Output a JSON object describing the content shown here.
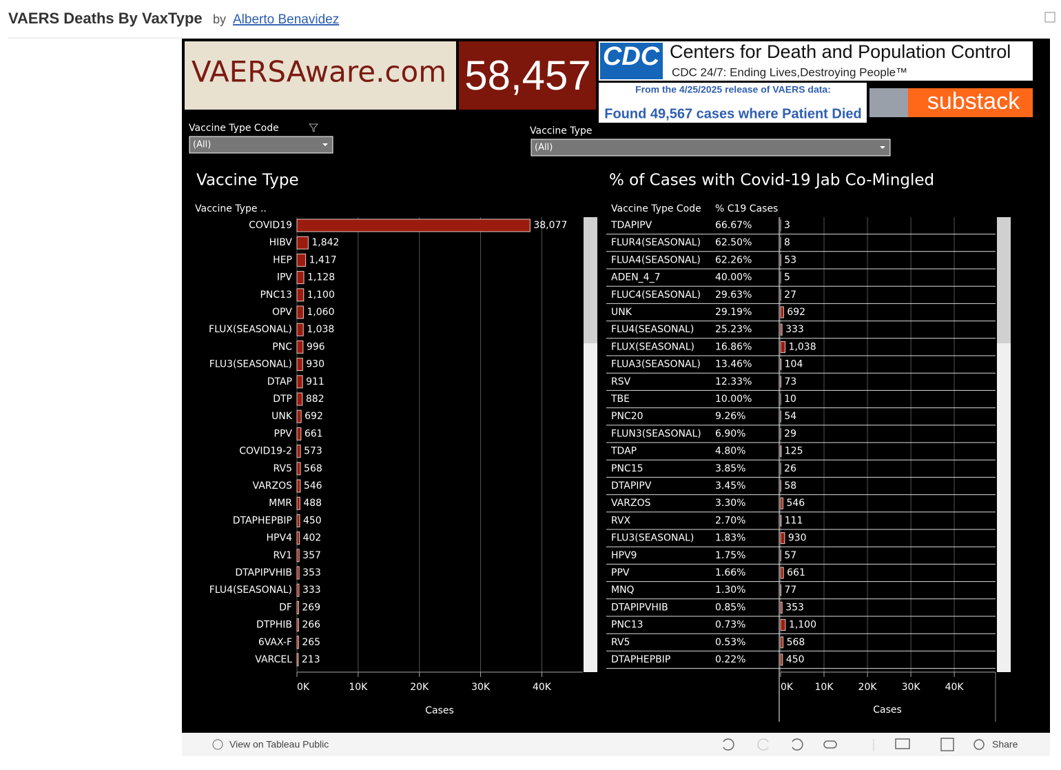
{
  "header": {
    "title": "VAERS Deaths By VaxType",
    "by": "by",
    "author": "Alberto Benavidez"
  },
  "banner": {
    "site": "VAERSAware.com",
    "count": "58,457",
    "cdc_logo": "CDC",
    "cdc_title": "Centers for Death and Population Control",
    "cdc_tagline": "CDC 24/7: Ending Lives,Destroying People™",
    "release_note": "From the 4/25/2025 release of VAERS data:",
    "found": "Found 49,567 cases where Patient Died",
    "substack": "substack"
  },
  "filters": [
    {
      "label": "Vaccine Type Code",
      "value": "(All)"
    },
    {
      "label": "Vaccine Type",
      "value": "(All)"
    }
  ],
  "chart_data": [
    {
      "type": "bar",
      "title": "Vaccine Type",
      "column_header": "Vaccine Type ..",
      "categories": [
        "COVID19",
        "HIBV",
        "HEP",
        "IPV",
        "PNC13",
        "OPV",
        "FLUX(SEASONAL)",
        "PNC",
        "FLU3(SEASONAL)",
        "DTAP",
        "DTP",
        "UNK",
        "PPV",
        "COVID19-2",
        "RV5",
        "VARZOS",
        "MMR",
        "DTAPHEPBIP",
        "HPV4",
        "RV1",
        "DTAPIPVHIB",
        "FLU4(SEASONAL)",
        "DF",
        "DTPHIB",
        "6VAX-F",
        "VARCEL"
      ],
      "values": [
        38077,
        1842,
        1417,
        1128,
        1100,
        1060,
        1038,
        996,
        930,
        911,
        882,
        692,
        661,
        573,
        568,
        546,
        488,
        450,
        402,
        357,
        353,
        333,
        269,
        266,
        265,
        213
      ],
      "value_labels": [
        "38,077",
        "1,842",
        "1,417",
        "1,128",
        "1,100",
        "1,060",
        "1,038",
        "996",
        "930",
        "911",
        "882",
        "692",
        "661",
        "573",
        "568",
        "546",
        "488",
        "450",
        "402",
        "357",
        "353",
        "333",
        "269",
        "266",
        "265",
        "213"
      ],
      "color": "#9b1c0e",
      "xlim": [
        0,
        46700
      ],
      "xticks": [
        {
          "value": 0,
          "label": "0K"
        },
        {
          "value": 10000,
          "label": "10K"
        },
        {
          "value": 20000,
          "label": "20K"
        },
        {
          "value": 30000,
          "label": "30K"
        },
        {
          "value": 40000,
          "label": "40K"
        }
      ],
      "xlabel": "Cases",
      "grid": true
    },
    {
      "type": "bar",
      "title": "% of Cases with Covid-19 Jab Co-Mingled",
      "column_headers": [
        "Vaccine Type Code",
        "% C19 Cases"
      ],
      "categories": [
        "TDAPIPV",
        "FLUR4(SEASONAL)",
        "FLUA4(SEASONAL)",
        "ADEN_4_7",
        "FLUC4(SEASONAL)",
        "UNK",
        "FLU4(SEASONAL)",
        "FLUX(SEASONAL)",
        "FLUA3(SEASONAL)",
        "RSV",
        "TBE",
        "PNC20",
        "FLUN3(SEASONAL)",
        "TDAP",
        "PNC15",
        "DTAPIPV",
        "VARZOS",
        "RVX",
        "FLU3(SEASONAL)",
        "HPV9",
        "PPV",
        "MNQ",
        "DTAPIPVHIB",
        "PNC13",
        "RV5",
        "DTAPHEPBIP"
      ],
      "pct": [
        "66.67%",
        "62.50%",
        "62.26%",
        "40.00%",
        "29.63%",
        "29.19%",
        "25.23%",
        "16.86%",
        "13.46%",
        "12.33%",
        "10.00%",
        "9.26%",
        "6.90%",
        "4.80%",
        "3.85%",
        "3.45%",
        "3.30%",
        "2.70%",
        "1.83%",
        "1.75%",
        "1.66%",
        "1.30%",
        "0.85%",
        "0.73%",
        "0.53%",
        "0.22%"
      ],
      "values": [
        3,
        8,
        53,
        5,
        27,
        692,
        333,
        1038,
        104,
        73,
        10,
        54,
        29,
        125,
        26,
        58,
        546,
        111,
        930,
        57,
        661,
        77,
        353,
        1100,
        568,
        450
      ],
      "value_labels": [
        "3",
        "8",
        "53",
        "5",
        "27",
        "692",
        "333",
        "1,038",
        "104",
        "73",
        "10",
        "54",
        "29",
        "125",
        "26",
        "58",
        "546",
        "111",
        "930",
        "57",
        "661",
        "77",
        "353",
        "1,100",
        "568",
        "450"
      ],
      "color": "#9b1c0e",
      "xlim": [
        0,
        49500
      ],
      "xticks": [
        {
          "value": 0,
          "label": "0K"
        },
        {
          "value": 10000,
          "label": "10K"
        },
        {
          "value": 20000,
          "label": "20K"
        },
        {
          "value": 30000,
          "label": "30K"
        },
        {
          "value": 40000,
          "label": "40K"
        }
      ],
      "xlabel": "Cases",
      "grid": true
    }
  ],
  "footer": {
    "view": "View on Tableau Public",
    "share": "Share"
  }
}
